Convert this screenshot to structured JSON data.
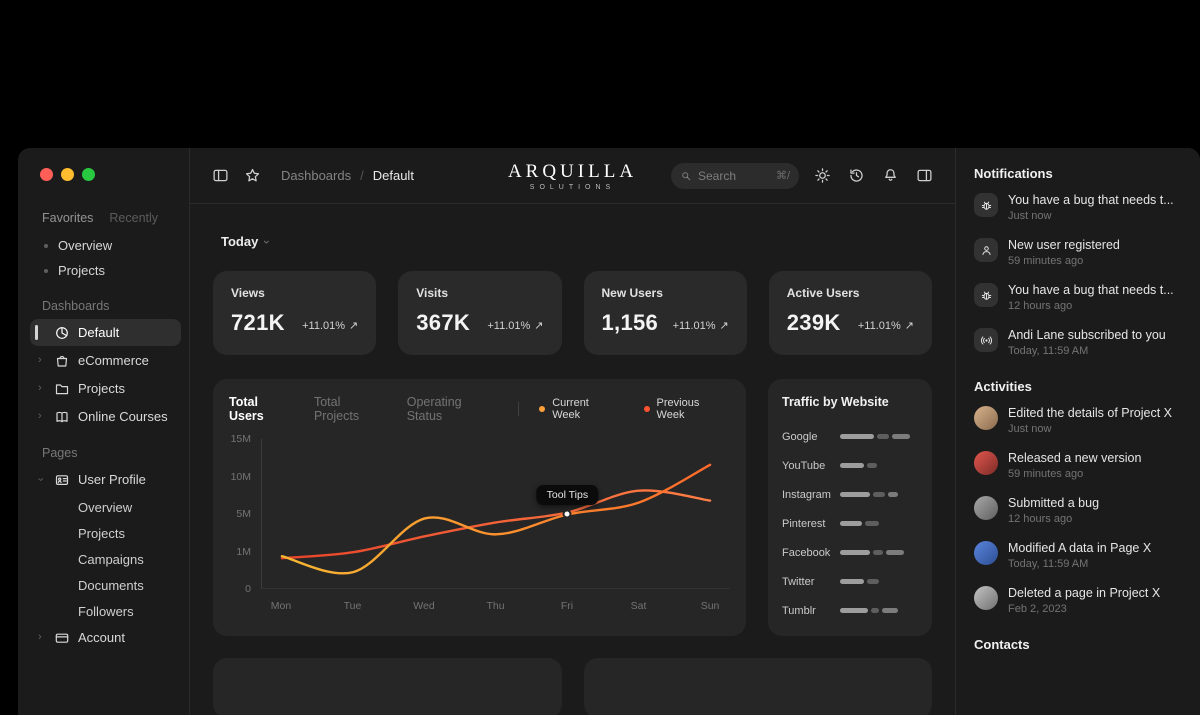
{
  "glyphs": {
    "trend_up": "↗",
    "chevron": "›",
    "bullet": "•"
  },
  "window": {
    "traffic_lights": {
      "close": "#ff5f57",
      "minimize": "#febc2e",
      "zoom": "#28c840"
    }
  },
  "sidebar": {
    "tabs": [
      {
        "label": "Favorites",
        "active": true
      },
      {
        "label": "Recently",
        "active": false
      }
    ],
    "favorites": [
      "Overview",
      "Projects"
    ],
    "sections": [
      {
        "title": "Dashboards",
        "items": [
          {
            "label": "Default",
            "icon": "pie-chart-icon",
            "selected": true,
            "chevron": false
          },
          {
            "label": "eCommerce",
            "icon": "shopping-bag-icon",
            "chevron": true
          },
          {
            "label": "Projects",
            "icon": "folder-icon",
            "chevron": true
          },
          {
            "label": "Online Courses",
            "icon": "book-icon",
            "chevron": true
          }
        ]
      },
      {
        "title": "Pages",
        "items": [
          {
            "label": "User Profile",
            "icon": "id-card-icon",
            "chevron": true,
            "expanded": true,
            "children": [
              "Overview",
              "Projects",
              "Campaigns",
              "Documents",
              "Followers"
            ]
          },
          {
            "label": "Account",
            "icon": "card-icon",
            "chevron": true
          }
        ]
      }
    ]
  },
  "header": {
    "breadcrumb": {
      "section": "Dashboards",
      "separator": "/",
      "current": "Default"
    },
    "logo": {
      "title": "ARQUILLA",
      "subtitle": "SOLUTIONS"
    },
    "search": {
      "placeholder": "Search",
      "shortcut": "⌘/"
    }
  },
  "toolbar": {
    "period": "Today"
  },
  "stats": [
    {
      "label": "Views",
      "value": "721K",
      "delta": "+11.01%"
    },
    {
      "label": "Visits",
      "value": "367K",
      "delta": "+11.01%"
    },
    {
      "label": "New Users",
      "value": "1,156",
      "delta": "+11.01%"
    },
    {
      "label": "Active Users",
      "value": "239K",
      "delta": "+11.01%"
    }
  ],
  "chart_data": {
    "type": "line",
    "title": "Total Users",
    "tabs": [
      {
        "label": "Total Users",
        "active": true
      },
      {
        "label": "Total Projects",
        "active": false
      },
      {
        "label": "Operating Status",
        "active": false
      }
    ],
    "legend": [
      {
        "name": "Current Week",
        "color": "#ffa03a"
      },
      {
        "name": "Previous Week",
        "color": "#ff5230"
      }
    ],
    "x": [
      "Mon",
      "Tue",
      "Wed",
      "Thu",
      "Fri",
      "Sat",
      "Sun"
    ],
    "y_ticks": [
      "15M",
      "10M",
      "5M",
      "1M",
      "0"
    ],
    "ylim": [
      0,
      15
    ],
    "units": "millions of users",
    "series": [
      {
        "name": "Current Week",
        "colors": [
          "#f7b733",
          "#ff6a2a"
        ],
        "values": [
          3.2,
          1.6,
          7.0,
          5.4,
          7.4,
          8.6,
          12.4
        ]
      },
      {
        "name": "Previous Week",
        "colors": [
          "#e8442a",
          "#ff7f45"
        ],
        "values": [
          3.0,
          3.6,
          5.2,
          6.6,
          7.6,
          9.8,
          8.8
        ]
      }
    ],
    "tooltip": {
      "label": "Tool Tips",
      "x_index": 4,
      "series": 0
    },
    "grid": false,
    "legend_position": "top"
  },
  "traffic": {
    "title": "Traffic by Website",
    "sites": [
      {
        "name": "Google",
        "segments": [
          34,
          12,
          18
        ]
      },
      {
        "name": "YouTube",
        "segments": [
          24,
          10
        ]
      },
      {
        "name": "Instagram",
        "segments": [
          30,
          12,
          10
        ]
      },
      {
        "name": "Pinterest",
        "segments": [
          22,
          14
        ]
      },
      {
        "name": "Facebook",
        "segments": [
          30,
          10,
          18
        ]
      },
      {
        "name": "Twitter",
        "segments": [
          24,
          12
        ]
      },
      {
        "name": "Tumblr",
        "segments": [
          28,
          8,
          16
        ]
      }
    ]
  },
  "notifications": {
    "title": "Notifications",
    "items": [
      {
        "icon": "bug-icon",
        "text": "You have a bug that needs t...",
        "time": "Just now"
      },
      {
        "icon": "user-icon",
        "text": "New user registered",
        "time": "59 minutes ago"
      },
      {
        "icon": "bug-icon",
        "text": "You have a bug that needs t...",
        "time": "12 hours ago"
      },
      {
        "icon": "broadcast-icon",
        "text": "Andi Lane subscribed to you",
        "time": "Today, 11:59 AM"
      }
    ]
  },
  "activities": {
    "title": "Activities",
    "items": [
      {
        "text": "Edited the details of Project X",
        "time": "Just now",
        "avatar": [
          "#d9b28c",
          "#8a6b4e"
        ]
      },
      {
        "text": "Released a new version",
        "time": "59 minutes ago",
        "avatar": [
          "#e2574f",
          "#7c2b26"
        ]
      },
      {
        "text": "Submitted a bug",
        "time": "12 hours ago",
        "avatar": [
          "#a9a9a9",
          "#5f5f5f"
        ]
      },
      {
        "text": "Modified A data in Page X",
        "time": "Today, 11:59 AM",
        "avatar": [
          "#5b86de",
          "#2c4d92"
        ]
      },
      {
        "text": "Deleted a page in Project X",
        "time": "Feb 2, 2023",
        "avatar": [
          "#c4c4c4",
          "#707070"
        ]
      }
    ]
  },
  "contacts": {
    "title": "Contacts"
  }
}
